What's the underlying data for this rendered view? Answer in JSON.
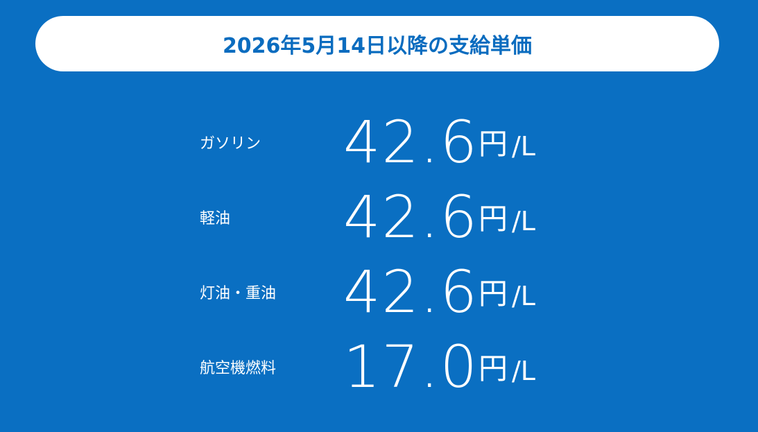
{
  "header": {
    "title": "2026年5月14日以降の支給単価"
  },
  "rows": [
    {
      "label": "ガソリン",
      "value": "42.6",
      "unit": "円",
      "per": "/L"
    },
    {
      "label": "軽油",
      "value": "42.6",
      "unit": "円",
      "per": "/L"
    },
    {
      "label": "灯油・重油",
      "value": "42.6",
      "unit": "円",
      "per": "/L"
    },
    {
      "label": "航空機燃料",
      "value": "17.0",
      "unit": "円",
      "per": "/L"
    }
  ]
}
